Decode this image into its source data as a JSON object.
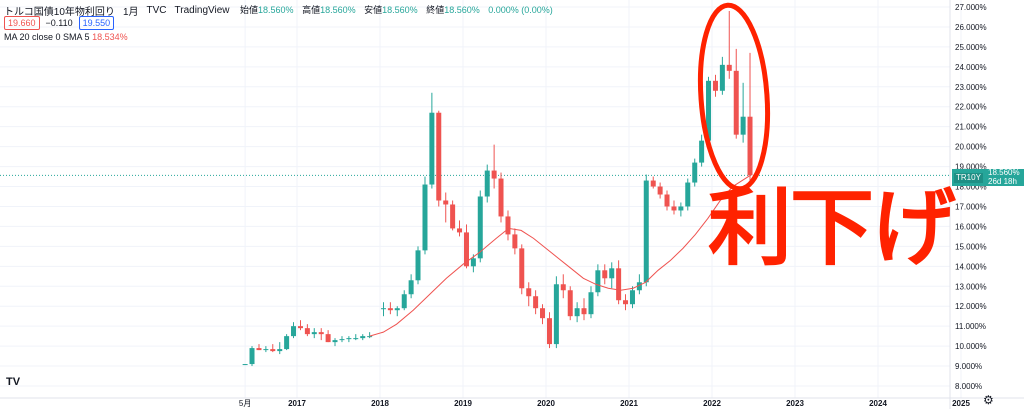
{
  "header": {
    "symbol": "トルコ国債10年物利回り",
    "interval": "1月",
    "source": "TVC",
    "platform": "TradingView",
    "open_label": "始値",
    "open": "18.560%",
    "high_label": "高値",
    "high": "18.560%",
    "low_label": "安値",
    "low": "18.560%",
    "close_label": "終値",
    "close": "18.560%",
    "change": "0.000% (0.00%)",
    "sell_price": "19.660",
    "spread": "−0.110",
    "buy_price": "19.550"
  },
  "indicator": {
    "label": "MA 20 close 0 SMA 5",
    "value": "18.534%"
  },
  "last_price": {
    "symbol": "TR10Y",
    "price": "18.560%",
    "countdown": "26d 18h"
  },
  "annotation": "利下げ",
  "logo": "TV",
  "colors": {
    "up": "#26a69a",
    "down": "#ef5350",
    "ma": "#ef5350",
    "annotation": "#ff2200",
    "grid": "#f0f3fa"
  },
  "chart_data": {
    "type": "candlestick",
    "y_ticks": [
      "27.000%",
      "26.000%",
      "25.000%",
      "24.000%",
      "23.000%",
      "22.000%",
      "21.000%",
      "20.000%",
      "19.000%",
      "18.000%",
      "17.000%",
      "16.000%",
      "15.000%",
      "14.000%",
      "13.000%",
      "12.000%",
      "11.000%",
      "10.000%",
      "9.000%",
      "8.000%"
    ],
    "ylim": [
      7.5,
      27.3
    ],
    "x_ticks": [
      "5月",
      "2017",
      "2018",
      "2019",
      "2020",
      "2021",
      "2022",
      "2023",
      "2024",
      "2025"
    ],
    "candles": [
      [
        2016.375,
        9.1,
        9.1,
        9.05,
        9.1
      ],
      [
        2016.458,
        9.1,
        10.0,
        9.0,
        9.9
      ],
      [
        2016.542,
        9.9,
        10.1,
        9.8,
        9.8
      ],
      [
        2016.625,
        9.8,
        10.0,
        9.7,
        9.85
      ],
      [
        2016.708,
        9.85,
        10.1,
        9.7,
        9.75
      ],
      [
        2016.792,
        9.75,
        10.2,
        9.6,
        9.85
      ],
      [
        2016.875,
        9.85,
        10.6,
        9.8,
        10.5
      ],
      [
        2016.958,
        10.5,
        11.2,
        10.4,
        11.0
      ],
      [
        2017.042,
        11.0,
        11.3,
        10.8,
        10.9
      ],
      [
        2017.125,
        10.9,
        11.1,
        10.5,
        10.6
      ],
      [
        2017.208,
        10.6,
        10.9,
        10.4,
        10.7
      ],
      [
        2017.292,
        10.7,
        10.9,
        10.3,
        10.6
      ],
      [
        2017.375,
        10.6,
        10.8,
        10.2,
        10.2
      ],
      [
        2017.458,
        10.2,
        10.4,
        10.0,
        10.3
      ],
      [
        2017.542,
        10.3,
        10.5,
        10.2,
        10.35
      ],
      [
        2017.625,
        10.35,
        10.5,
        10.2,
        10.4
      ],
      [
        2017.708,
        10.4,
        10.6,
        10.3,
        10.4
      ],
      [
        2017.792,
        10.4,
        10.6,
        10.3,
        10.5
      ],
      [
        2017.875,
        10.5,
        10.7,
        10.4,
        10.5
      ],
      [
        2018.042,
        11.9,
        12.2,
        11.5,
        11.9
      ],
      [
        2018.125,
        11.9,
        12.2,
        11.6,
        11.8
      ],
      [
        2018.208,
        11.8,
        12.0,
        11.5,
        11.9
      ],
      [
        2018.292,
        11.9,
        12.8,
        11.8,
        12.6
      ],
      [
        2018.375,
        12.6,
        13.6,
        12.4,
        13.3
      ],
      [
        2018.458,
        13.3,
        15.0,
        13.1,
        14.8
      ],
      [
        2018.542,
        14.8,
        18.5,
        14.6,
        18.1
      ],
      [
        2018.625,
        18.1,
        22.7,
        17.9,
        21.7
      ],
      [
        2018.708,
        21.7,
        21.8,
        17.0,
        17.3
      ],
      [
        2018.792,
        17.3,
        17.7,
        16.2,
        17.1
      ],
      [
        2018.875,
        17.1,
        17.3,
        15.8,
        15.9
      ],
      [
        2018.958,
        15.9,
        16.3,
        15.5,
        15.7
      ],
      [
        2019.042,
        15.7,
        16.1,
        13.9,
        14.0
      ],
      [
        2019.125,
        14.0,
        14.6,
        13.7,
        14.4
      ],
      [
        2019.208,
        14.4,
        17.8,
        14.2,
        17.5
      ],
      [
        2019.292,
        17.5,
        19.1,
        17.2,
        18.8
      ],
      [
        2019.375,
        18.8,
        20.1,
        17.9,
        18.4
      ],
      [
        2019.458,
        18.4,
        18.7,
        16.2,
        16.5
      ],
      [
        2019.542,
        16.5,
        16.8,
        15.3,
        15.6
      ],
      [
        2019.625,
        15.6,
        15.9,
        14.6,
        14.9
      ],
      [
        2019.708,
        14.9,
        15.1,
        12.6,
        12.9
      ],
      [
        2019.792,
        12.9,
        13.2,
        12.0,
        12.5
      ],
      [
        2019.875,
        12.5,
        12.8,
        11.6,
        11.9
      ],
      [
        2019.958,
        11.9,
        12.1,
        11.1,
        11.4
      ],
      [
        2020.042,
        11.4,
        11.7,
        9.9,
        10.1
      ],
      [
        2020.125,
        10.1,
        13.5,
        9.9,
        13.1
      ],
      [
        2020.208,
        13.1,
        13.6,
        12.4,
        12.8
      ],
      [
        2020.292,
        12.8,
        13.0,
        11.3,
        11.5
      ],
      [
        2020.375,
        11.5,
        12.2,
        11.2,
        11.9
      ],
      [
        2020.458,
        11.9,
        12.4,
        11.3,
        11.6
      ],
      [
        2020.542,
        11.6,
        13.0,
        11.4,
        12.7
      ],
      [
        2020.625,
        12.7,
        14.1,
        12.5,
        13.8
      ],
      [
        2020.708,
        13.8,
        14.1,
        13.1,
        13.4
      ],
      [
        2020.792,
        13.4,
        14.2,
        12.9,
        13.9
      ],
      [
        2020.875,
        13.9,
        14.3,
        12.1,
        12.3
      ],
      [
        2020.958,
        12.3,
        12.6,
        11.8,
        12.1
      ],
      [
        2021.042,
        12.1,
        13.0,
        11.9,
        12.8
      ],
      [
        2021.125,
        12.8,
        13.6,
        12.6,
        13.2
      ],
      [
        2021.208,
        13.2,
        18.6,
        13.0,
        18.3
      ],
      [
        2021.292,
        18.3,
        18.5,
        17.9,
        18.0
      ],
      [
        2021.375,
        18.0,
        18.2,
        17.4,
        17.6
      ],
      [
        2021.458,
        17.6,
        17.8,
        16.8,
        17.0
      ],
      [
        2021.542,
        17.0,
        17.3,
        16.6,
        16.8
      ],
      [
        2021.625,
        16.8,
        17.2,
        16.5,
        17.0
      ],
      [
        2021.708,
        17.0,
        18.4,
        16.8,
        18.2
      ],
      [
        2021.792,
        18.2,
        19.4,
        18.0,
        19.2
      ],
      [
        2021.875,
        19.2,
        20.6,
        19.0,
        20.3
      ],
      [
        2021.958,
        20.3,
        23.5,
        20.1,
        23.3
      ],
      [
        2022.042,
        23.3,
        23.6,
        22.5,
        22.8
      ],
      [
        2022.125,
        22.8,
        24.5,
        22.6,
        24.1
      ],
      [
        2022.208,
        24.1,
        26.8,
        23.4,
        23.8
      ],
      [
        2022.292,
        23.8,
        24.9,
        20.4,
        20.6
      ],
      [
        2022.375,
        20.6,
        23.2,
        20.2,
        21.5
      ],
      [
        2022.458,
        21.5,
        24.7,
        18.3,
        18.56
      ]
    ],
    "ma_line": [
      [
        2017.875,
        10.5
      ],
      [
        2018.04,
        10.7
      ],
      [
        2018.2,
        11.1
      ],
      [
        2018.4,
        11.8
      ],
      [
        2018.6,
        12.6
      ],
      [
        2018.8,
        13.4
      ],
      [
        2019.0,
        14.1
      ],
      [
        2019.2,
        14.7
      ],
      [
        2019.4,
        15.4
      ],
      [
        2019.55,
        15.9
      ],
      [
        2019.7,
        15.8
      ],
      [
        2019.85,
        15.4
      ],
      [
        2020.0,
        14.9
      ],
      [
        2020.15,
        14.4
      ],
      [
        2020.3,
        13.9
      ],
      [
        2020.45,
        13.4
      ],
      [
        2020.6,
        13.1
      ],
      [
        2020.75,
        12.9
      ],
      [
        2020.9,
        12.8
      ],
      [
        2021.05,
        12.9
      ],
      [
        2021.2,
        13.2
      ],
      [
        2021.35,
        13.8
      ],
      [
        2021.5,
        14.3
      ],
      [
        2021.65,
        14.9
      ],
      [
        2021.8,
        15.6
      ],
      [
        2021.95,
        16.4
      ],
      [
        2022.1,
        17.3
      ],
      [
        2022.25,
        18.0
      ],
      [
        2022.45,
        18.53
      ]
    ]
  }
}
